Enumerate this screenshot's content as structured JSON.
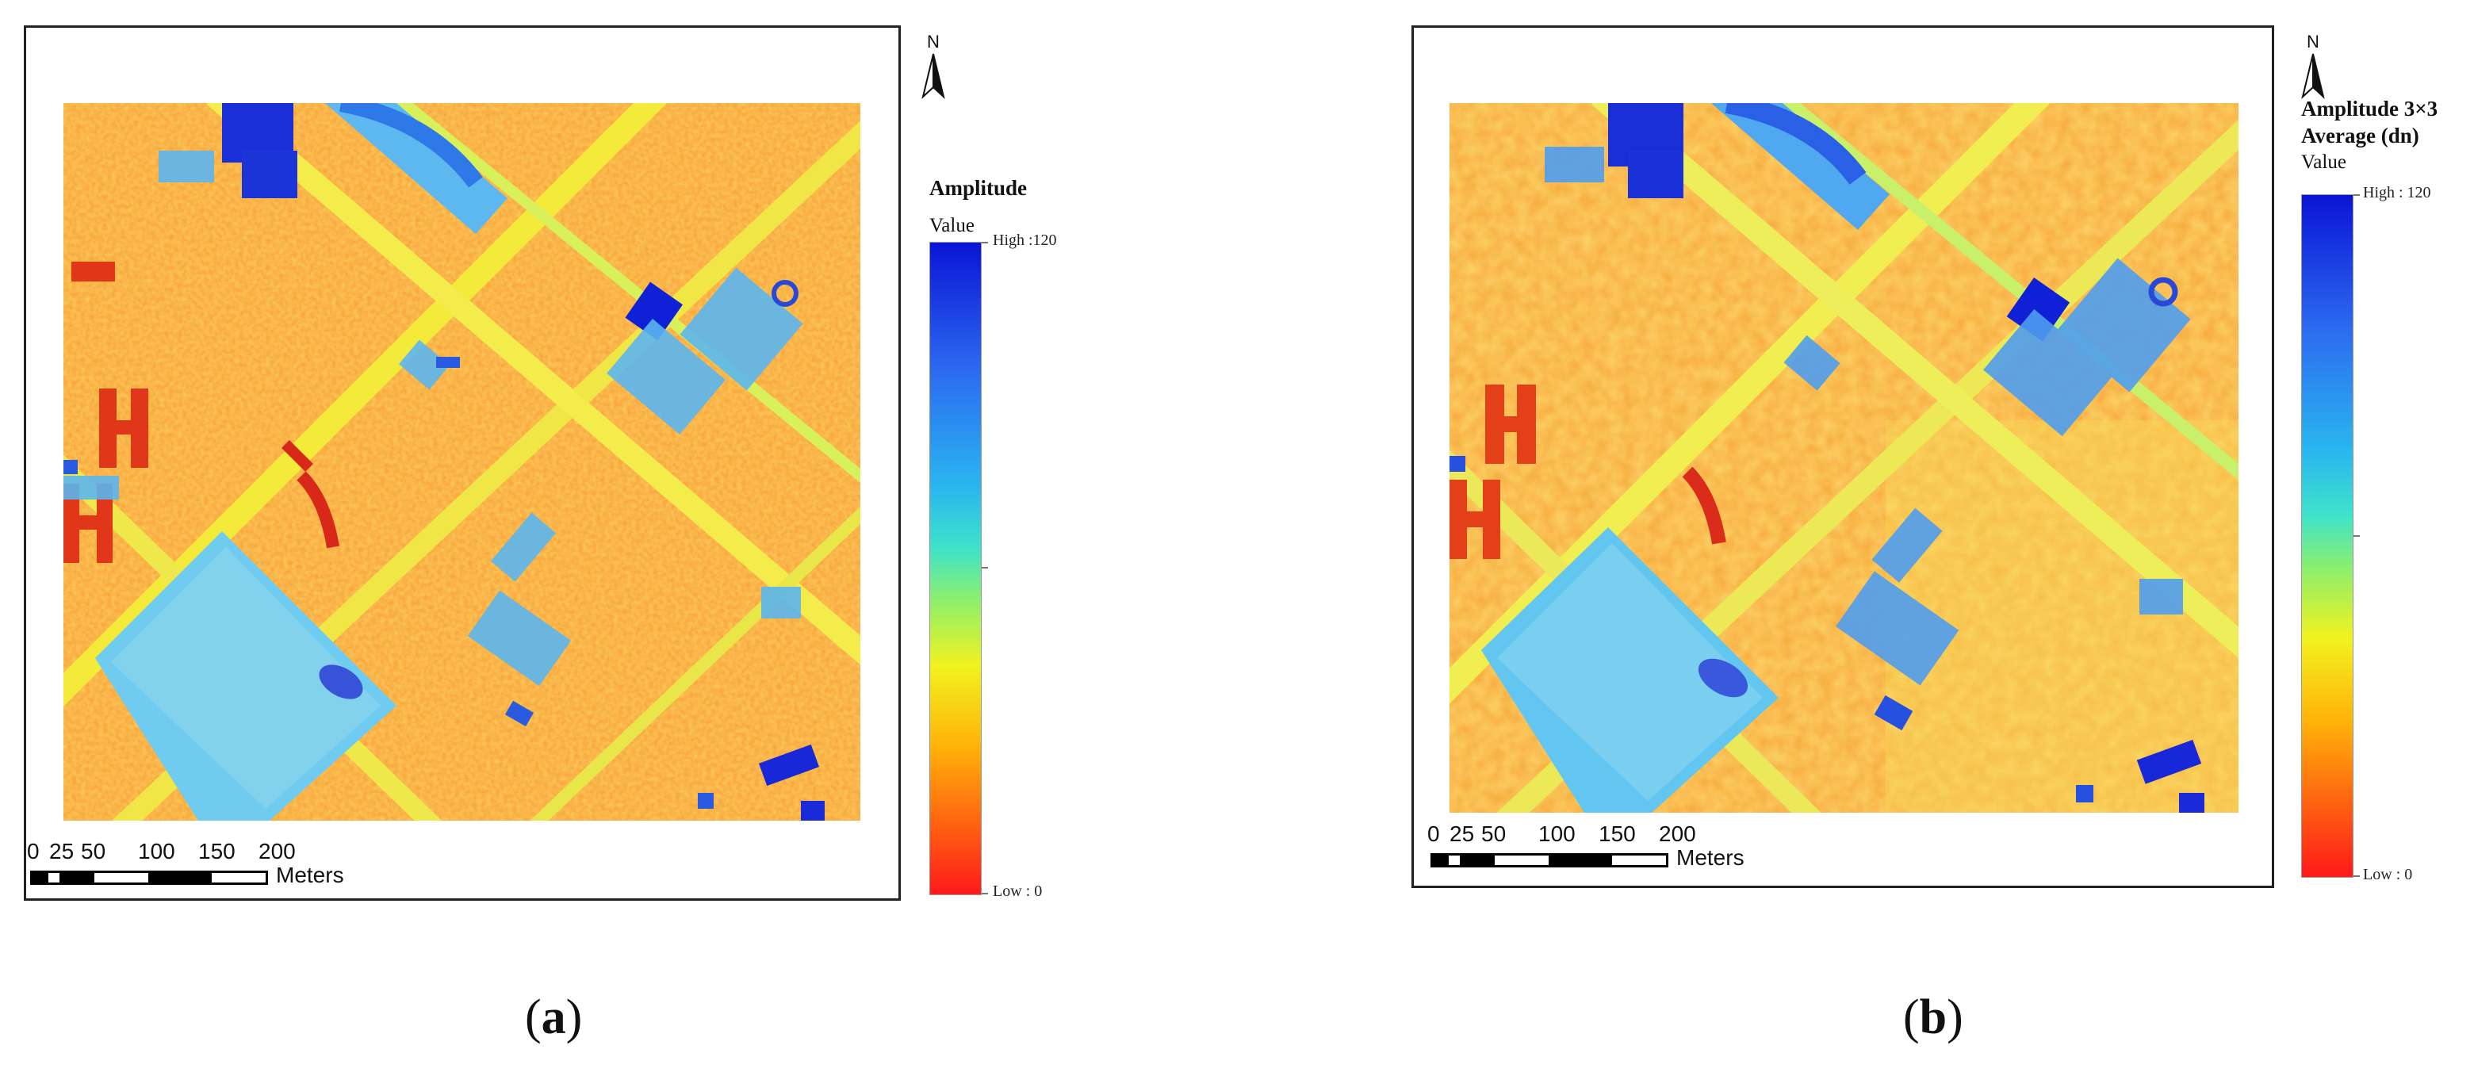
{
  "panels": [
    {
      "legend": {
        "title_line1": "Amplitude",
        "title_line2": "",
        "value_label": "Value",
        "high_label": "High :120",
        "low_label": "Low : 0"
      },
      "scale": {
        "ticks": [
          "0",
          "25",
          "50",
          "100",
          "150",
          "200"
        ],
        "unit": "Meters"
      },
      "north": "N",
      "caption": "a"
    },
    {
      "legend": {
        "title_line1": "Amplitude 3×3",
        "title_line2": "Average (dn)",
        "value_label": "Value",
        "high_label": "High : 120",
        "low_label": "Low : 0"
      },
      "scale": {
        "ticks": [
          "0",
          "25",
          "50",
          "100",
          "150",
          "200"
        ],
        "unit": "Meters"
      },
      "north": "N",
      "caption": "b"
    }
  ],
  "colors": {
    "high": "#0a14d6",
    "mid": "#3fe3c9",
    "low": "#ff1a1a",
    "background": "#f9b23a"
  }
}
